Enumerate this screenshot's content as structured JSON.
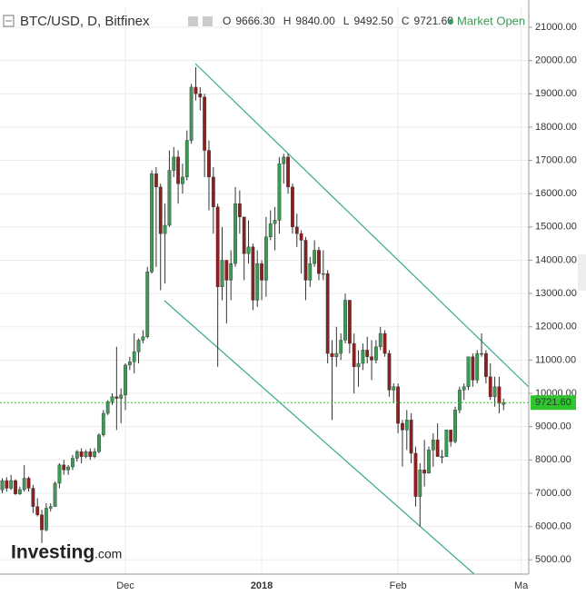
{
  "chart_data": {
    "type": "candlestick",
    "title": "BTC/USD, D, Bitfinex",
    "header_values": [
      {
        "key": "O",
        "value": {
          "value": 9666.3,
          "label": "9666.30"
        }
      },
      {
        "key": "H",
        "value": {
          "value": 9840,
          "label": "9840.00"
        }
      },
      {
        "key": "L",
        "value": {
          "value": 9492.5,
          "label": "9492.50"
        }
      },
      {
        "key": "C",
        "value": {
          "value": 9721.6,
          "label": "9721.60"
        }
      }
    ],
    "status": "Market Open",
    "watermark": {
      "brand": "Investing",
      "suffix": ".com"
    },
    "up_color": "#3c9a55",
    "down_color": "#8e1f1f",
    "last_price": {
      "value": 9721.6,
      "label": "9721.60"
    },
    "last_price_color": "#2fc52f",
    "grid": true,
    "ylim": [
      4570,
      21600
    ],
    "yticks": [
      {
        "value": 5000,
        "label": "5000.00"
      },
      {
        "value": 6000,
        "label": "6000.00"
      },
      {
        "value": 7000,
        "label": "7000.00"
      },
      {
        "value": 8000,
        "label": "8000.00"
      },
      {
        "value": 9000,
        "label": "9000.00"
      },
      {
        "value": 10000,
        "label": "10000.00"
      },
      {
        "value": 11000,
        "label": "11000.00"
      },
      {
        "value": 12000,
        "label": "12000.00"
      },
      {
        "value": 13000,
        "label": "13000.00"
      },
      {
        "value": 14000,
        "label": "14000.00"
      },
      {
        "value": 15000,
        "label": "15000.00"
      },
      {
        "value": 16000,
        "label": "16000.00"
      },
      {
        "value": 17000,
        "label": "17000.00"
      },
      {
        "value": 18000,
        "label": "18000.00"
      },
      {
        "value": 19000,
        "label": "19000.00"
      },
      {
        "value": 20000,
        "label": "20000.00"
      },
      {
        "value": 21000,
        "label": "21000.00"
      }
    ],
    "categories": [
      null,
      null,
      null,
      null,
      null,
      null,
      null,
      null,
      null,
      null,
      null,
      null,
      null,
      null,
      null,
      null,
      null,
      null,
      null,
      null,
      null,
      null,
      null,
      null,
      null,
      null,
      null,
      null,
      "Dec",
      null,
      null,
      null,
      null,
      null,
      null,
      null,
      null,
      null,
      null,
      null,
      null,
      null,
      null,
      null,
      null,
      null,
      null,
      null,
      null,
      null,
      null,
      null,
      null,
      null,
      null,
      null,
      null,
      null,
      null,
      "2018",
      null,
      null,
      null,
      null,
      null,
      null,
      null,
      null,
      null,
      null,
      null,
      null,
      null,
      null,
      null,
      null,
      null,
      null,
      null,
      null,
      null,
      null,
      null,
      null,
      null,
      null,
      null,
      null,
      null,
      null,
      "Feb",
      null,
      null,
      null,
      null,
      null,
      null,
      null,
      null,
      null,
      null,
      null,
      null,
      null,
      null,
      null,
      null,
      null,
      null,
      null,
      null,
      null,
      null,
      null,
      null,
      null,
      null,
      null,
      "Ma"
    ],
    "open": [
      7100,
      7380,
      7150,
      7380,
      6980,
      7110,
      7450,
      7150,
      6600,
      6350,
      5900,
      6550,
      6600,
      7300,
      7850,
      7700,
      7790,
      8050,
      8250,
      8100,
      8250,
      8100,
      8250,
      8750,
      9400,
      9750,
      9900,
      9850,
      9950,
      10850,
      10950,
      11250,
      11600,
      11700,
      13650,
      16600,
      16200,
      14800,
      15050,
      16700,
      17100,
      16300,
      16500,
      17600,
      19200,
      19000,
      18900,
      17300,
      16500,
      15600,
      13200,
      14000,
      13400,
      13900,
      15700,
      15300,
      14200,
      14400,
      12800,
      13900,
      13400,
      14700,
      15100,
      15200,
      16900,
      17100,
      16200,
      15000,
      14800,
      14600,
      13400,
      13900,
      14300,
      13600,
      13600,
      11200,
      11100,
      11200,
      11600,
      12800,
      11500,
      10800,
      10900,
      11300,
      11100,
      11000,
      11400,
      11800,
      11200,
      10100,
      10200,
      9100,
      8900,
      9200,
      8200,
      6900,
      7700,
      7600,
      8300,
      8600,
      8100,
      8100,
      8900,
      8550,
      9500,
      10100,
      10200,
      11100,
      10400,
      11200,
      11200,
      10500,
      9900,
      10200,
      9666.3,
      null,
      null,
      null,
      null
    ],
    "high": [
      7450,
      7480,
      7550,
      7420,
      7200,
      7850,
      7500,
      7250,
      6850,
      6500,
      6700,
      6700,
      7350,
      7900,
      8000,
      7850,
      8150,
      8300,
      8350,
      8300,
      8350,
      8350,
      8800,
      9500,
      9800,
      10000,
      11400,
      10150,
      10900,
      11100,
      11800,
      11650,
      11900,
      13800,
      16700,
      16800,
      16300,
      15700,
      17300,
      17400,
      17300,
      16900,
      17900,
      19300,
      19800,
      19200,
      19000,
      17600,
      16800,
      15700,
      15000,
      14000,
      14300,
      16200,
      16100,
      15300,
      15200,
      14500,
      14300,
      14000,
      15300,
      15500,
      15600,
      17100,
      17200,
      17200,
      16300,
      15400,
      14900,
      14700,
      14100,
      14600,
      14400,
      14300,
      13700,
      11600,
      12000,
      11800,
      13000,
      12800,
      11800,
      11300,
      11500,
      11700,
      11600,
      11600,
      12000,
      11900,
      11300,
      10300,
      10300,
      9200,
      9500,
      9400,
      8400,
      7900,
      8600,
      8400,
      8800,
      9100,
      8300,
      8900,
      8900,
      9600,
      10200,
      10300,
      11100,
      11200,
      11300,
      11800,
      11300,
      10900,
      10500,
      10500,
      9840,
      null,
      null,
      null,
      null
    ],
    "low": [
      7000,
      7050,
      7100,
      6950,
      6950,
      7050,
      7050,
      6400,
      6300,
      5500,
      5850,
      6450,
      6600,
      7150,
      7550,
      7550,
      7700,
      7950,
      7900,
      8050,
      8000,
      8050,
      8200,
      8700,
      9350,
      9650,
      8900,
      9100,
      9500,
      10700,
      10600,
      10900,
      11500,
      11650,
      13600,
      13800,
      13100,
      13300,
      15000,
      16500,
      15700,
      16000,
      16400,
      17500,
      18800,
      18500,
      16500,
      15500,
      14800,
      10800,
      12800,
      12100,
      12800,
      13800,
      14800,
      13400,
      13900,
      12500,
      12600,
      12800,
      12900,
      14600,
      14300,
      14800,
      16300,
      16000,
      14800,
      14400,
      13600,
      12800,
      13200,
      13800,
      13400,
      13400,
      10900,
      9200,
      10800,
      11000,
      11500,
      11200,
      10000,
      10200,
      10700,
      10900,
      10400,
      10900,
      11300,
      11100,
      9900,
      9700,
      8800,
      7800,
      8300,
      7900,
      6600,
      6000,
      7200,
      7600,
      7800,
      8200,
      7900,
      8100,
      8400,
      8500,
      9400,
      9800,
      10100,
      10200,
      10300,
      11100,
      10300,
      9800,
      9600,
      9400,
      9492.5,
      null,
      null,
      null,
      null
    ],
    "close": [
      7380,
      7150,
      7380,
      6980,
      7110,
      7450,
      7150,
      6600,
      6350,
      5900,
      6550,
      6600,
      7300,
      7850,
      7700,
      7790,
      8050,
      8250,
      8100,
      8250,
      8100,
      8250,
      8750,
      9400,
      9750,
      9900,
      9850,
      9950,
      10850,
      10950,
      11250,
      11600,
      11700,
      13650,
      16600,
      16200,
      14800,
      15050,
      16700,
      17100,
      16300,
      16500,
      17600,
      19200,
      19000,
      18900,
      17300,
      16500,
      15600,
      13200,
      14000,
      13400,
      13900,
      15700,
      15300,
      14200,
      14400,
      12800,
      13900,
      13400,
      14700,
      15100,
      15200,
      16900,
      17100,
      16200,
      15000,
      14800,
      14600,
      13400,
      13900,
      14300,
      13600,
      13600,
      11200,
      11100,
      11200,
      11600,
      12800,
      11500,
      10800,
      10900,
      11300,
      11100,
      11000,
      11400,
      11800,
      11200,
      10100,
      10200,
      9100,
      8900,
      9200,
      8200,
      6900,
      7700,
      7600,
      8300,
      8600,
      8100,
      8100,
      8900,
      8550,
      9500,
      10100,
      10200,
      11100,
      10400,
      11200,
      11200,
      10500,
      9900,
      10200,
      9700,
      9721.6,
      null,
      null,
      null,
      null
    ]
  }
}
